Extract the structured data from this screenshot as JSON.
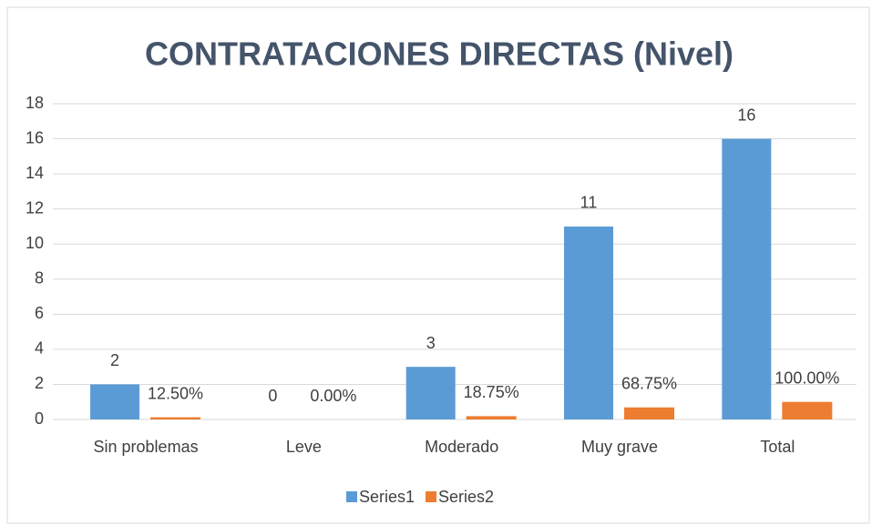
{
  "chart_data": {
    "type": "bar",
    "title": "CONTRATACIONES DIRECTAS (Nivel)",
    "categories": [
      "Sin problemas",
      "Leve",
      "Moderado",
      "Muy grave",
      "Total"
    ],
    "series": [
      {
        "name": "Series1",
        "color": "#5b9bd5",
        "values": [
          2,
          0,
          3,
          11,
          16
        ]
      },
      {
        "name": "Series2",
        "color": "#ed7d31",
        "values": [
          0.125,
          0,
          0.1875,
          0.6875,
          1
        ],
        "value_labels": [
          "12.50%",
          "0.00%",
          "18.75%",
          "68.75%",
          "100.00%"
        ]
      }
    ],
    "ylim": [
      0,
      18
    ],
    "yticks": [
      0,
      2,
      4,
      6,
      8,
      10,
      12,
      14,
      16,
      18
    ],
    "grid": true,
    "legend": "bottom"
  }
}
